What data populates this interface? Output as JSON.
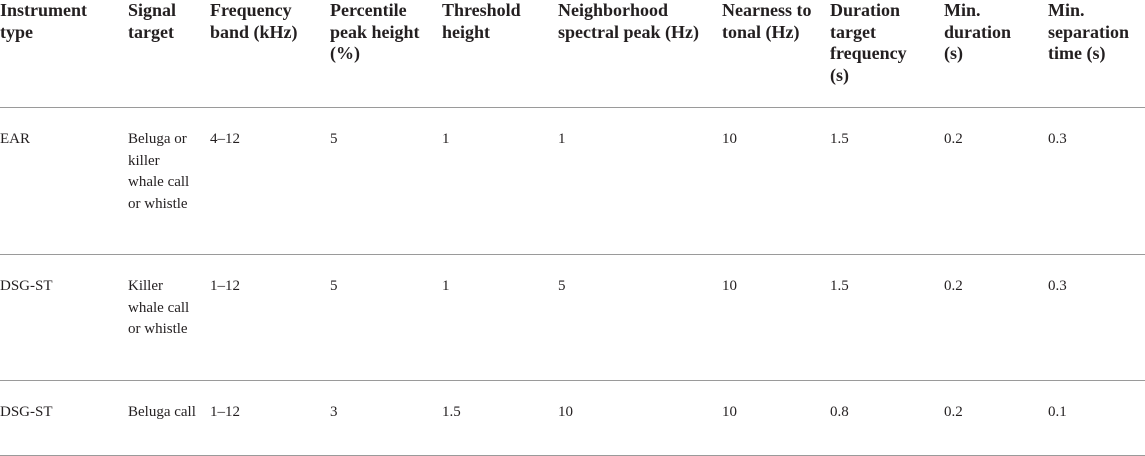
{
  "table": {
    "headers": [
      "Instrument type",
      "Signal target",
      "Frequency band (kHz)",
      "Percentile peak height (%)",
      "Threshold height",
      "Neighborhood spectral peak (Hz)",
      "Nearness to tonal (Hz)",
      "Duration target frequency (s)",
      "Min. duration (s)",
      "Min. separation time (s)"
    ],
    "rows": [
      [
        "EAR",
        "Beluga or killer whale call or whistle",
        "4–12",
        "5",
        "1",
        "1",
        "10",
        "1.5",
        "0.2",
        "0.3"
      ],
      [
        "DSG-ST",
        "Killer whale call or whistle",
        "1–12",
        "5",
        "1",
        "5",
        "10",
        "1.5",
        "0.2",
        "0.3"
      ],
      [
        "DSG-ST",
        "Beluga call",
        "1–12",
        "3",
        "1.5",
        "10",
        "10",
        "0.8",
        "0.2",
        "0.1"
      ]
    ]
  }
}
